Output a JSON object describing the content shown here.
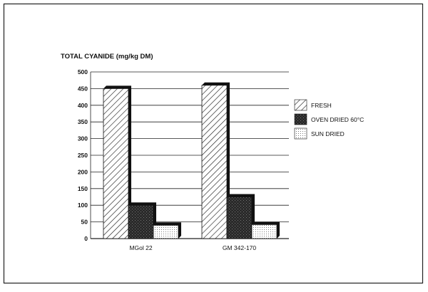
{
  "chart_data": {
    "type": "bar",
    "title": "",
    "ylabel": "TOTAL CYANIDE (mg/kg DM)",
    "xlabel": "",
    "categories": [
      "MGol 22",
      "GM 342-170"
    ],
    "series": [
      {
        "name": "FRESH",
        "values": [
          450,
          460
        ],
        "pattern": "diagonal-hatch"
      },
      {
        "name": "OVEN DRIED 60°C",
        "values": [
          100,
          125
        ],
        "pattern": "dark-stipple"
      },
      {
        "name": "SUN DRIED",
        "values": [
          40,
          42
        ],
        "pattern": "light-dots"
      }
    ],
    "ylim": [
      0,
      500
    ],
    "yticks": [
      0,
      50,
      100,
      150,
      200,
      250,
      300,
      350,
      400,
      450,
      500
    ],
    "grid": true,
    "legend": "right",
    "colors": {
      "ink": "#111111",
      "dark_fill": "#333333",
      "background": "#ffffff"
    }
  }
}
